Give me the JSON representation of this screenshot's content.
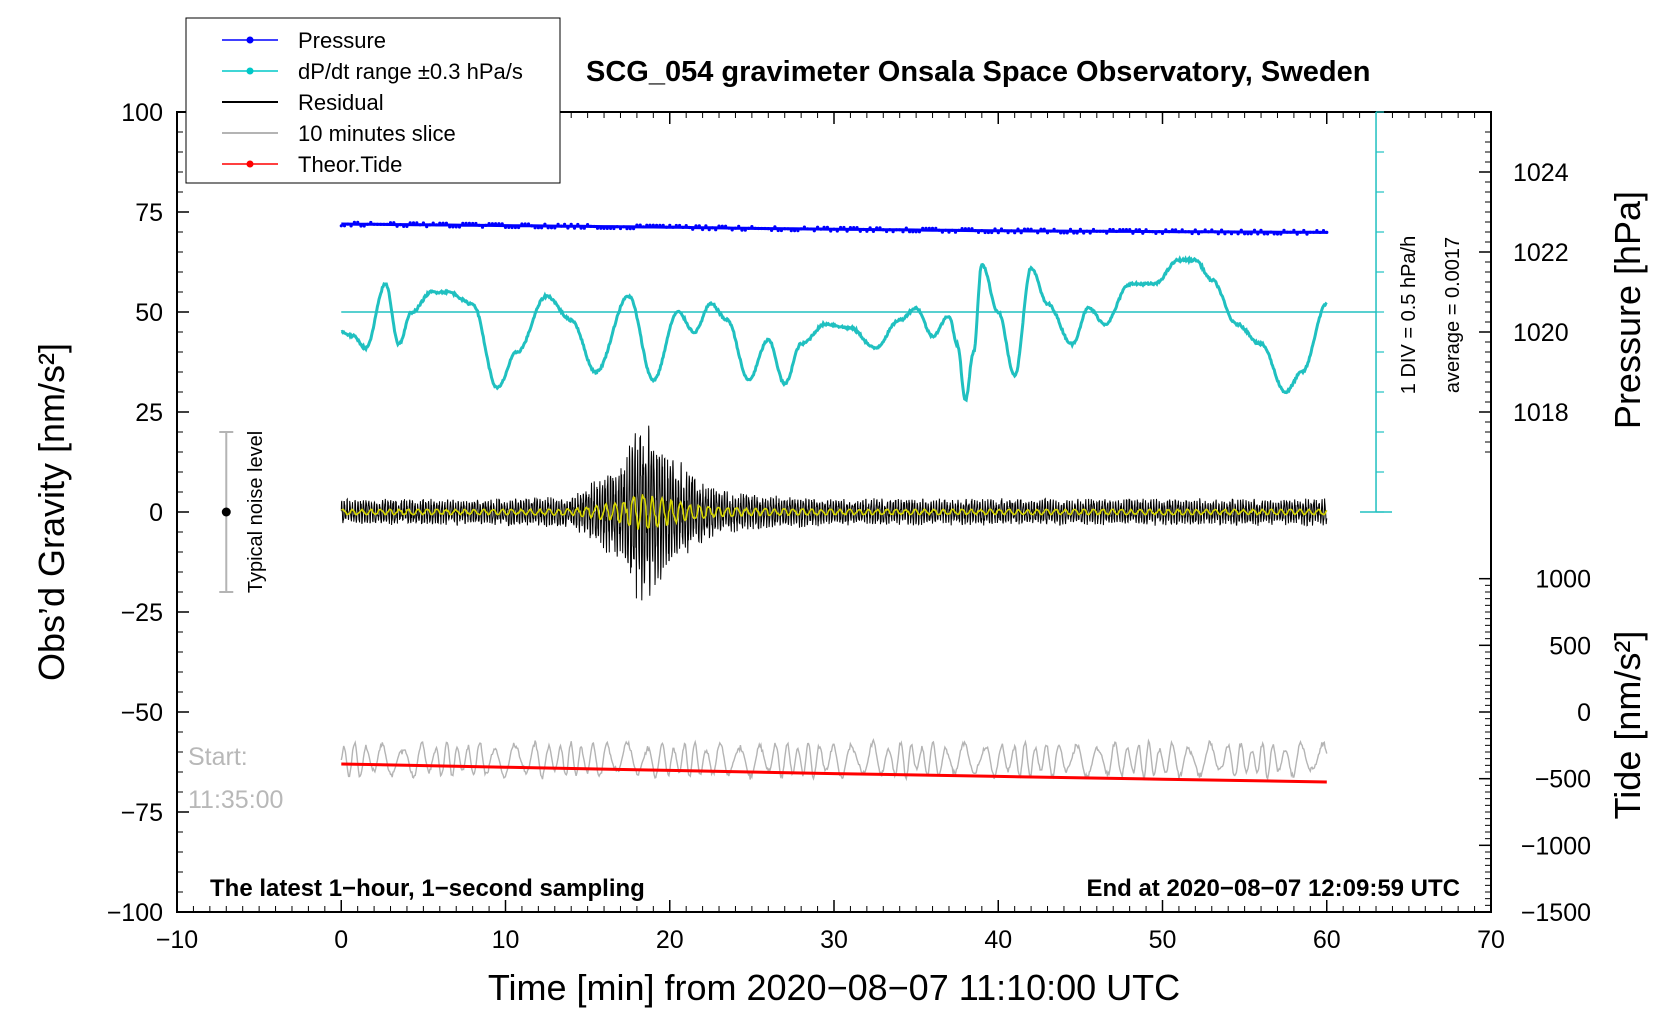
{
  "chart_data": {
    "type": "line",
    "title": "SCG_054 gravimeter Onsala Space Observatory, Sweden",
    "xlabel": "Time [min] from 2020−08−07 11:10:00 UTC",
    "ylabel_left": "Obs’d Gravity [nm/s²]",
    "ylabel_right_top": "Pressure [hPa]",
    "ylabel_right_bottom": "Tide [nm/s²]",
    "xlim": [
      -10,
      70
    ],
    "ylim": [
      -100,
      100
    ],
    "x_ticks": [
      -10,
      0,
      10,
      20,
      30,
      40,
      50,
      60,
      70
    ],
    "x_tick_labels": [
      "−10",
      "0",
      "10",
      "20",
      "30",
      "40",
      "50",
      "60",
      "70"
    ],
    "y_ticks": [
      -100,
      -75,
      -50,
      -25,
      0,
      25,
      50,
      75,
      100
    ],
    "y_tick_labels": [
      "−100",
      "−75",
      "−50",
      "−25",
      "0",
      "25",
      "50",
      "75",
      "100"
    ],
    "pressure_axis": {
      "ticks": [
        1018,
        1020,
        1022,
        1024
      ],
      "tick_labels": [
        "1018",
        "1020",
        "1022",
        "1024"
      ],
      "gravity_equiv": [
        25,
        45,
        65,
        85
      ]
    },
    "tide_axis": {
      "ticks": [
        -1500,
        -1000,
        -500,
        0,
        500,
        1000
      ],
      "tick_labels": [
        "−1500",
        "−1000",
        "−500",
        "0",
        "500",
        "1000"
      ],
      "gravity_equiv": [
        -100,
        -83.33,
        -66.67,
        -50,
        -33.33,
        -16.67
      ]
    },
    "legend": [
      {
        "label": "Pressure",
        "color": "#0000ff",
        "marker": true
      },
      {
        "label": "dP/dt range ±0.3 hPa/s",
        "color": "#00c8c8",
        "marker": true
      },
      {
        "label": "Residual",
        "color": "#000000",
        "marker": false
      },
      {
        "label": "10 minutes slice",
        "color": "#b4b4b4",
        "marker": false
      },
      {
        "label": "Theor.Tide",
        "color": "#ff0000",
        "marker": true
      }
    ],
    "annotations": {
      "bottom_left": "The latest 1−hour, 1−second sampling",
      "bottom_right": "End at 2020−08−07 12:09:59 UTC",
      "start_label": "Start:",
      "start_time": "11:35:00",
      "noise_label": "Typical noise level",
      "dpdt_scale": "1 DIV = 0.5 hPa/h",
      "dpdt_average": "average = 0.0017"
    },
    "noise_bar": {
      "x": -7,
      "center": 0,
      "low": -20,
      "high": 20
    },
    "dpdt_reference_level": 50,
    "dpdt_scale_min": 0,
    "dpdt_scale_max": 100,
    "dpdt_scale_x": 63,
    "dpdt_scale_step": 10,
    "series": [
      {
        "name": "Pressure",
        "color": "#0000ff",
        "x": [
          0,
          5,
          10,
          15,
          20,
          25,
          30,
          35,
          40,
          45,
          50,
          55,
          60
        ],
        "values": [
          72,
          71.8,
          71.6,
          71.4,
          71.2,
          70.9,
          70.7,
          70.5,
          70.3,
          70.2,
          70.1,
          70.0,
          69.9
        ]
      },
      {
        "name": "dP/dt range ±0.3 hPa/s",
        "color": "#20c0c0",
        "x": [
          0,
          0.7,
          1.5,
          2.7,
          3.5,
          4.3,
          5.5,
          6.5,
          8,
          9.5,
          10.7,
          12.5,
          14,
          15.5,
          17.5,
          19,
          20.5,
          21.5,
          22.5,
          23.5,
          24.8,
          26,
          27,
          28,
          29.5,
          31,
          32.5,
          34,
          35,
          36,
          37,
          37.5,
          38,
          38.5,
          39,
          40,
          41,
          42,
          43,
          44.5,
          45.5,
          46.5,
          48,
          49.5,
          51,
          52,
          53,
          54.5,
          56,
          57.5,
          58.5,
          60
        ],
        "values": [
          45,
          44,
          41,
          57,
          42,
          50,
          55,
          55,
          52,
          31,
          40,
          54,
          48,
          35,
          54,
          33,
          50,
          45,
          52,
          48,
          33,
          43,
          32,
          42,
          47,
          46,
          41,
          48,
          51,
          44,
          49,
          42,
          28,
          40,
          62,
          50,
          34,
          61,
          52,
          42,
          51,
          47,
          57,
          57,
          63,
          63,
          58,
          47,
          42,
          30,
          35,
          52
        ]
      },
      {
        "name": "Residual",
        "color": "#000000",
        "x": [
          0,
          5,
          10,
          14,
          15,
          16,
          17,
          17.5,
          18,
          18.5,
          19,
          19.5,
          20,
          20.5,
          21,
          22,
          23,
          25,
          30,
          35,
          40,
          45,
          50,
          55,
          60
        ],
        "amplitude": [
          3,
          3,
          3,
          3.5,
          6,
          9,
          12,
          16,
          20,
          20,
          18,
          16,
          14,
          12,
          10,
          7,
          5,
          4,
          3,
          3,
          3,
          3,
          3,
          3,
          3
        ]
      },
      {
        "name": "10 minutes slice",
        "color": "#b4b4b4",
        "x": [
          0,
          10,
          20,
          30,
          40,
          50,
          60
        ],
        "values": [
          -62,
          -62,
          -62,
          -62,
          -62,
          -62,
          -62
        ]
      },
      {
        "name": "Theor.Tide",
        "color": "#ff0000",
        "x": [
          0,
          10,
          20,
          30,
          40,
          50,
          60
        ],
        "values": [
          -63,
          -63.8,
          -64.6,
          -65.4,
          -66.1,
          -66.8,
          -67.5
        ]
      }
    ]
  }
}
